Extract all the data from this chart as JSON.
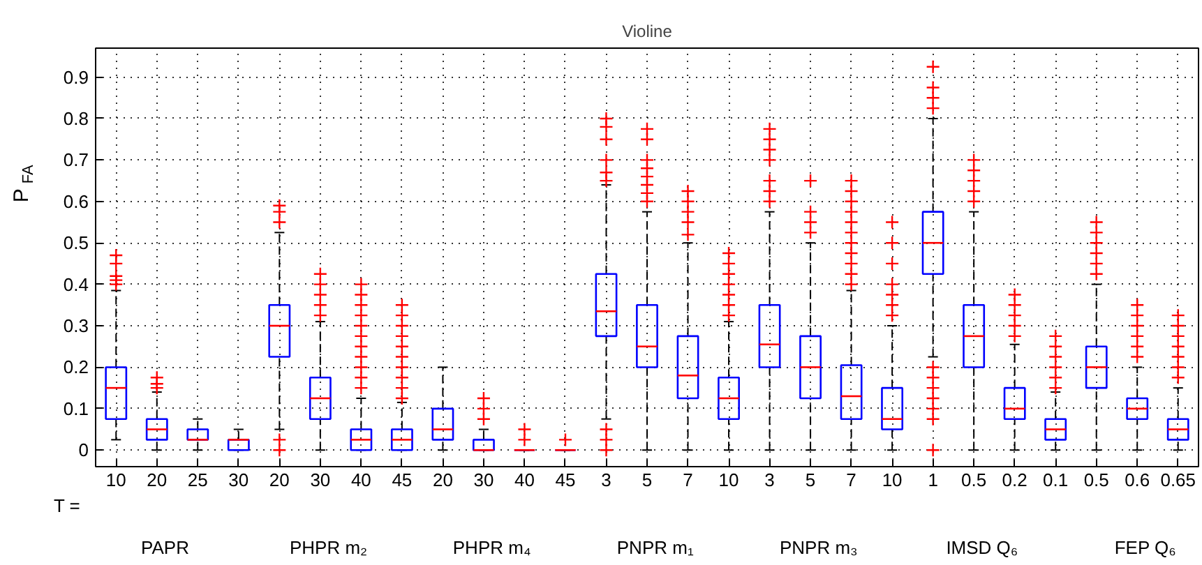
{
  "chart_data": {
    "type": "box",
    "title": "Violine",
    "ylabel": "P$_{FA}$",
    "color": "#0000ff",
    "categories": [
      "10",
      "20",
      "25",
      "30",
      "20",
      "30",
      "40",
      "45",
      "20",
      "30",
      "40",
      "45",
      "3",
      "5",
      "7",
      "10",
      "3",
      "5",
      "7",
      "10",
      "1",
      "0.5",
      "0.2",
      "0.1",
      "0.5",
      "0.6",
      "0.65"
    ],
    "ylim": [
      -0.04,
      0.97
    ],
    "yticks": [
      0,
      0.1,
      0.2,
      0.3,
      0.4,
      0.5,
      0.6,
      0.7,
      0.8,
      0.9
    ],
    "grid": true,
    "annotations": [
      "T =",
      "PAPR",
      "PHPR m₂",
      "PHPR m₄",
      "PNPR m₁",
      "PNPR m₃",
      "IMSD Q₆",
      "FEP Q₆"
    ],
    "boxes": [
      {
        "low": 0.025,
        "q1": 0.075,
        "median": 0.15,
        "q3": 0.2,
        "high": 0.385,
        "outliers": [
          0.4,
          0.41,
          0.42,
          0.45,
          0.47
        ]
      },
      {
        "low": 0,
        "q1": 0.025,
        "median": 0.05,
        "q3": 0.075,
        "high": 0.14,
        "outliers": [
          0.15,
          0.16,
          0.175
        ]
      },
      {
        "low": 0,
        "q1": 0.025,
        "median": 0.025,
        "q3": 0.05,
        "high": 0.075
      },
      {
        "low": 0,
        "q1": 0,
        "median": 0.025,
        "q3": 0.025,
        "high": 0.05
      },
      {
        "low": 0.05,
        "q1": 0.225,
        "median": 0.3,
        "q3": 0.35,
        "high": 0.525,
        "outliers": [
          0,
          0.025,
          0.55,
          0.575,
          0.59
        ]
      },
      {
        "low": 0,
        "q1": 0.075,
        "median": 0.125,
        "q3": 0.175,
        "high": 0.31,
        "outliers": [
          0.325,
          0.35,
          0.375,
          0.4,
          0.425
        ]
      },
      {
        "low": 0,
        "q1": 0,
        "median": 0.025,
        "q3": 0.05,
        "high": 0.125,
        "outliers": [
          0.15,
          0.175,
          0.2,
          0.225,
          0.25,
          0.275,
          0.3,
          0.325,
          0.35,
          0.375,
          0.4
        ]
      },
      {
        "low": 0,
        "q1": 0,
        "median": 0.025,
        "q3": 0.05,
        "high": 0.115,
        "outliers": [
          0.125,
          0.15,
          0.175,
          0.2,
          0.225,
          0.25,
          0.275,
          0.3,
          0.325,
          0.35
        ]
      },
      {
        "low": 0,
        "q1": 0.025,
        "median": 0.05,
        "q3": 0.1,
        "high": 0.2
      },
      {
        "low": 0,
        "q1": 0,
        "median": 0,
        "q3": 0.025,
        "high": 0.05,
        "outliers": [
          0.075,
          0.1,
          0.125
        ]
      },
      {
        "low": 0,
        "q1": 0,
        "median": 0,
        "q3": 0,
        "high": 0,
        "outliers": [
          0.025,
          0.05
        ]
      },
      {
        "low": 0,
        "q1": 0,
        "median": 0,
        "q3": 0,
        "high": 0,
        "outliers": [
          0.025
        ]
      },
      {
        "low": 0.075,
        "q1": 0.275,
        "median": 0.335,
        "q3": 0.425,
        "high": 0.64,
        "outliers": [
          0,
          0.025,
          0.05,
          0.65,
          0.67,
          0.7,
          0.75,
          0.78,
          0.8
        ]
      },
      {
        "low": 0,
        "q1": 0.2,
        "median": 0.25,
        "q3": 0.35,
        "high": 0.575,
        "outliers": [
          0.6,
          0.62,
          0.64,
          0.66,
          0.68,
          0.7,
          0.75,
          0.775
        ]
      },
      {
        "low": 0,
        "q1": 0.125,
        "median": 0.18,
        "q3": 0.275,
        "high": 0.5,
        "outliers": [
          0.52,
          0.55,
          0.575,
          0.6,
          0.625
        ]
      },
      {
        "low": 0,
        "q1": 0.075,
        "median": 0.125,
        "q3": 0.175,
        "high": 0.31,
        "outliers": [
          0.325,
          0.35,
          0.375,
          0.4,
          0.425,
          0.45,
          0.475
        ]
      },
      {
        "low": 0,
        "q1": 0.2,
        "median": 0.255,
        "q3": 0.35,
        "high": 0.575,
        "outliers": [
          0.6,
          0.625,
          0.65,
          0.7,
          0.725,
          0.75,
          0.775
        ]
      },
      {
        "low": 0,
        "q1": 0.125,
        "median": 0.2,
        "q3": 0.275,
        "high": 0.5,
        "outliers": [
          0.525,
          0.55,
          0.575,
          0.65
        ]
      },
      {
        "low": 0,
        "q1": 0.075,
        "median": 0.13,
        "q3": 0.205,
        "high": 0.385,
        "outliers": [
          0.4,
          0.425,
          0.45,
          0.475,
          0.5,
          0.525,
          0.55,
          0.575,
          0.6,
          0.625,
          0.65
        ]
      },
      {
        "low": 0,
        "q1": 0.05,
        "median": 0.075,
        "q3": 0.15,
        "high": 0.3,
        "outliers": [
          0.325,
          0.35,
          0.375,
          0.4,
          0.45,
          0.5,
          0.55
        ]
      },
      {
        "low": 0.225,
        "q1": 0.425,
        "median": 0.5,
        "q3": 0.575,
        "high": 0.8,
        "outliers": [
          0,
          0.075,
          0.1,
          0.125,
          0.15,
          0.175,
          0.2,
          0.825,
          0.85,
          0.875,
          0.925
        ]
      },
      {
        "low": 0,
        "q1": 0.2,
        "median": 0.275,
        "q3": 0.35,
        "high": 0.575,
        "outliers": [
          0.6,
          0.625,
          0.65,
          0.675,
          0.7
        ]
      },
      {
        "low": 0,
        "q1": 0.075,
        "median": 0.1,
        "q3": 0.15,
        "high": 0.255,
        "outliers": [
          0.275,
          0.3,
          0.325,
          0.35,
          0.375
        ]
      },
      {
        "low": 0,
        "q1": 0.025,
        "median": 0.05,
        "q3": 0.075,
        "high": 0.14,
        "outliers": [
          0.15,
          0.175,
          0.2,
          0.225,
          0.25,
          0.275
        ]
      },
      {
        "low": 0,
        "q1": 0.15,
        "median": 0.2,
        "q3": 0.25,
        "high": 0.4,
        "outliers": [
          0.425,
          0.45,
          0.475,
          0.5,
          0.525,
          0.55
        ]
      },
      {
        "low": 0,
        "q1": 0.075,
        "median": 0.1,
        "q3": 0.125,
        "high": 0.2,
        "outliers": [
          0.225,
          0.25,
          0.275,
          0.3,
          0.325,
          0.35
        ]
      },
      {
        "low": 0,
        "q1": 0.025,
        "median": 0.05,
        "q3": 0.075,
        "high": 0.15,
        "outliers": [
          0.175,
          0.2,
          0.225,
          0.25,
          0.275,
          0.3,
          0.325
        ]
      }
    ]
  }
}
